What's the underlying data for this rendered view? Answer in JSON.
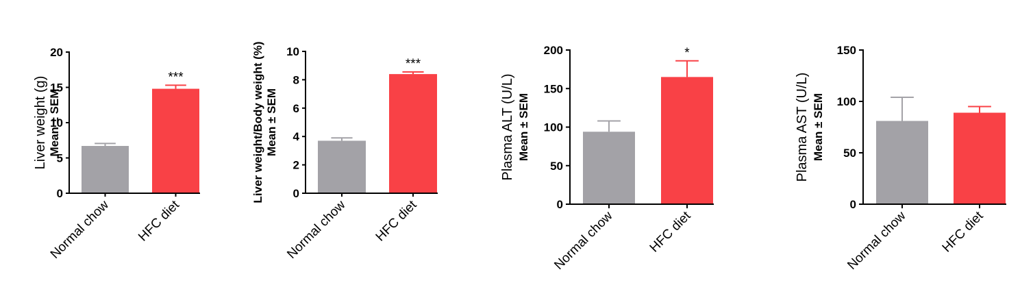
{
  "colors": {
    "normal": "#a3a2a7",
    "hfc": "#f94146",
    "axis": "#000000"
  },
  "chart_data": [
    {
      "type": "bar",
      "categories": [
        "Normal chow",
        "HFC diet"
      ],
      "values": [
        6.7,
        14.8
      ],
      "errors": [
        0.35,
        0.5
      ],
      "significance": [
        "",
        "***"
      ],
      "ylabel": "Liver weight (g)",
      "ylabel_sub": "Mean ± SEM",
      "ylim": [
        0,
        20
      ],
      "yticks": [
        0,
        5,
        10,
        15,
        20
      ]
    },
    {
      "type": "bar",
      "categories": [
        "Normal chow",
        "HFC diet"
      ],
      "values": [
        3.7,
        8.4
      ],
      "errors": [
        0.2,
        0.15
      ],
      "significance": [
        "",
        "***"
      ],
      "ylabel": "Liver weight/Body weight (%)",
      "ylabel_sub": "Mean ± SEM",
      "ylim": [
        0,
        10
      ],
      "yticks": [
        0,
        2,
        4,
        6,
        8,
        10
      ]
    },
    {
      "type": "bar",
      "categories": [
        "Normal chow",
        "HFC diet"
      ],
      "values": [
        94,
        165
      ],
      "errors": [
        14,
        21
      ],
      "significance": [
        "",
        "*"
      ],
      "ylabel": "Plasma ALT (U/L)",
      "ylabel_sub": "Mean ± SEM",
      "ylim": [
        0,
        200
      ],
      "yticks": [
        0,
        50,
        100,
        150,
        200
      ]
    },
    {
      "type": "bar",
      "categories": [
        "Normal chow",
        "HFC diet"
      ],
      "values": [
        81,
        89
      ],
      "errors": [
        23,
        6
      ],
      "significance": [
        "",
        ""
      ],
      "ylabel": "Plasma AST (U/L)",
      "ylabel_sub": "Mean ± SEM",
      "ylim": [
        0,
        150
      ],
      "yticks": [
        0,
        50,
        100,
        150
      ]
    }
  ]
}
